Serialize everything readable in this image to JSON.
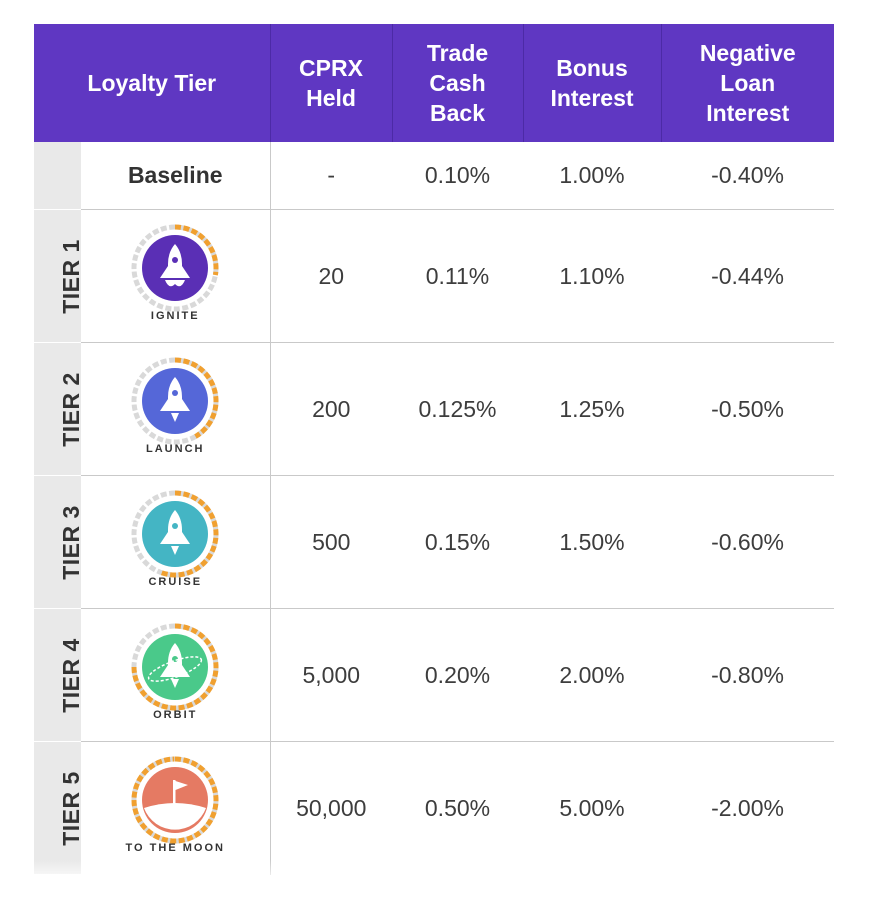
{
  "columns": {
    "tier": "Loyalty Tier",
    "cprx": "CPRX Held",
    "cash": "Trade Cash Back",
    "bonus": "Bonus Interest",
    "loan": "Negative Loan Interest"
  },
  "baseline": {
    "label": "Baseline",
    "cprx": "-",
    "cash": "0.10%",
    "bonus": "1.00%",
    "loan": "-0.40%"
  },
  "tiers": [
    {
      "side": "TIER 1",
      "badge": "IGNITE",
      "icon": "rocket-ignite-icon",
      "color": "#5a2fb5",
      "cprx": "20",
      "cash": "0.11%",
      "bonus": "1.10%",
      "loan": "-0.44%"
    },
    {
      "side": "TIER 2",
      "badge": "LAUNCH",
      "icon": "rocket-launch-icon",
      "color": "#5567d8",
      "cprx": "200",
      "cash": "0.125%",
      "bonus": "1.25%",
      "loan": "-0.50%"
    },
    {
      "side": "TIER 3",
      "badge": "CRUISE",
      "icon": "rocket-cruise-icon",
      "color": "#44b5c4",
      "cprx": "500",
      "cash": "0.15%",
      "bonus": "1.50%",
      "loan": "-0.60%"
    },
    {
      "side": "TIER 4",
      "badge": "ORBIT",
      "icon": "rocket-orbit-icon",
      "color": "#4ac98a",
      "cprx": "5,000",
      "cash": "0.20%",
      "bonus": "2.00%",
      "loan": "-0.80%"
    },
    {
      "side": "TIER 5",
      "badge": "TO THE MOON",
      "icon": "moon-flag-icon",
      "color": "#e57a63",
      "cprx": "50,000",
      "cash": "0.50%",
      "bonus": "5.00%",
      "loan": "-2.00%"
    }
  ],
  "colors": {
    "header_bg": "#5f37c2",
    "side_bg": "#e9e9e9",
    "ring_accent": "#f0a030",
    "ring_base": "#d9d9d9"
  }
}
